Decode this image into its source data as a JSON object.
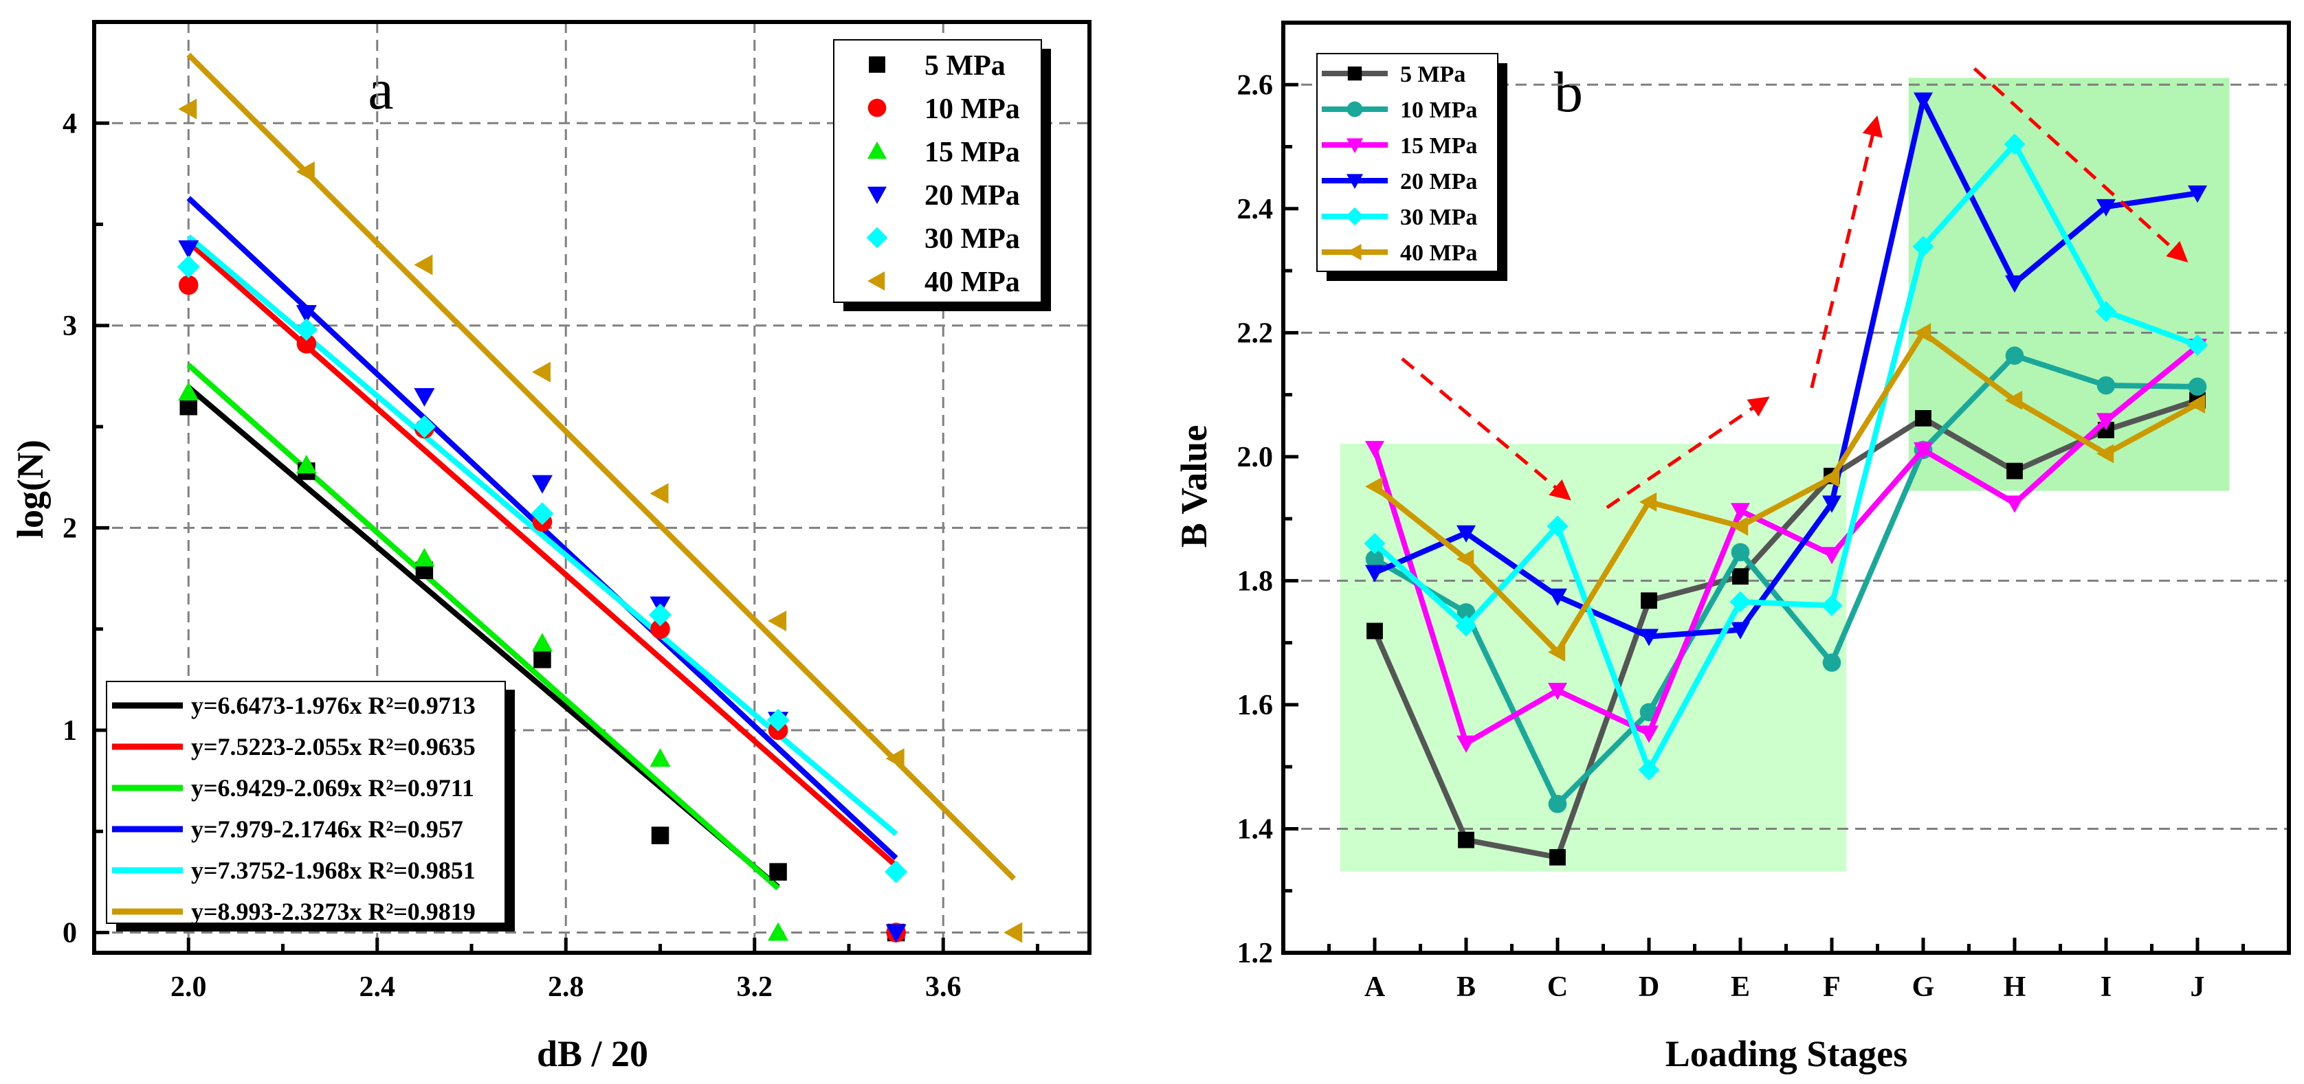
{
  "chart_data": [
    {
      "type": "scatter",
      "panel_label": "a",
      "xlabel": "dB / 20",
      "ylabel": "log(N)",
      "xlim": [
        1.8,
        3.91
      ],
      "ylim": [
        -0.1,
        4.5
      ],
      "xticks": [
        "2.0",
        "2.4",
        "2.8",
        "3.2",
        "3.6"
      ],
      "yticks": [
        "0",
        "1",
        "2",
        "3",
        "4"
      ],
      "grid": true,
      "legend_placement": "top-right",
      "fit_legend_placement": "bottom-left",
      "series": [
        {
          "name": "5 MPa",
          "color": "#000000",
          "marker": "square",
          "x": [
            2.0,
            2.25,
            2.5,
            2.75,
            3.0,
            3.25,
            3.5
          ],
          "y": [
            2.6,
            2.28,
            1.79,
            1.35,
            0.48,
            0.3,
            0.0
          ],
          "fit": {
            "label": "y=6.6473-1.976x R²=0.9713",
            "a": 6.6473,
            "b": 1.976,
            "x_range": [
              2.0,
              3.25
            ]
          }
        },
        {
          "name": "10 MPa",
          "color": "#ff0000",
          "marker": "circle",
          "x": [
            2.0,
            2.25,
            2.5,
            2.75,
            3.0,
            3.25,
            3.5
          ],
          "y": [
            3.2,
            2.91,
            2.49,
            2.03,
            1.5,
            1.0,
            0.0
          ],
          "fit": {
            "label": "y=7.5223-2.055x R²=0.9635",
            "a": 7.5223,
            "b": 2.055,
            "x_range": [
              2.0,
              3.5
            ]
          }
        },
        {
          "name": "15 MPa",
          "color": "#00ee00",
          "marker": "triangle-up",
          "x": [
            2.0,
            2.25,
            2.5,
            2.75,
            3.0,
            3.25
          ],
          "y": [
            2.67,
            2.31,
            1.85,
            1.43,
            0.86,
            0.0
          ],
          "fit": {
            "label": "y=6.9429-2.069x R²=0.9711",
            "a": 6.9429,
            "b": 2.069,
            "x_range": [
              2.0,
              3.25
            ]
          }
        },
        {
          "name": "20 MPa",
          "color": "#0000ff",
          "marker": "triangle-down",
          "x": [
            2.0,
            2.25,
            2.5,
            2.75,
            3.0,
            3.25,
            3.5
          ],
          "y": [
            3.38,
            3.06,
            2.65,
            2.22,
            1.62,
            1.05,
            0.0
          ],
          "fit": {
            "label": "y=7.979-2.1746x R²=0.957",
            "a": 7.979,
            "b": 2.1746,
            "x_range": [
              2.0,
              3.5
            ]
          }
        },
        {
          "name": "30 MPa",
          "color": "#00ffff",
          "marker": "diamond",
          "x": [
            2.0,
            2.25,
            2.5,
            2.75,
            3.0,
            3.25,
            3.5
          ],
          "y": [
            3.29,
            2.98,
            2.5,
            2.07,
            1.57,
            1.05,
            0.3
          ],
          "fit": {
            "label": "y=7.3752-1.968x R²=0.9851",
            "a": 7.3752,
            "b": 1.968,
            "x_range": [
              2.0,
              3.5
            ]
          }
        },
        {
          "name": "40 MPa",
          "color": "#cc9900",
          "marker": "triangle-left",
          "x": [
            2.0,
            2.25,
            2.5,
            2.75,
            3.0,
            3.25,
            3.5,
            3.75
          ],
          "y": [
            4.07,
            3.76,
            3.3,
            2.77,
            2.17,
            1.54,
            0.86,
            0.0
          ],
          "fit": {
            "label": "y=8.993-2.3273x R²=0.9819",
            "a": 8.993,
            "b": 2.3273,
            "x_range": [
              2.0,
              3.75
            ]
          }
        }
      ]
    },
    {
      "type": "line",
      "panel_label": "b",
      "xlabel": "Loading Stages",
      "ylabel": "B Value",
      "categories": [
        "A",
        "B",
        "C",
        "D",
        "E",
        "F",
        "G",
        "H",
        "I",
        "J"
      ],
      "ylim": [
        1.2,
        2.7
      ],
      "yticks": [
        "1.2",
        "1.4",
        "1.6",
        "1.8",
        "2.0",
        "2.2",
        "2.4",
        "2.6"
      ],
      "grid": "horizontal dashed at 1.4, 1.8, 2.2, 2.6",
      "legend_placement": "top-left",
      "shaded_regions": [
        {
          "x_index_range": [
            -0.38,
            5.16
          ],
          "y_range": [
            1.331,
            2.021
          ],
          "color": "#ccffcc"
        },
        {
          "x_index_range": [
            5.84,
            9.35
          ],
          "y_range": [
            1.945,
            2.611
          ],
          "color": "#b3f5b3"
        }
      ],
      "trend_arrows": [
        {
          "from": [
            0.3,
            2.158
          ],
          "to": [
            2.12,
            1.933
          ],
          "color": "#ff0000"
        },
        {
          "from": [
            2.54,
            1.918
          ],
          "to": [
            4.29,
            2.094
          ],
          "color": "#ff0000"
        },
        {
          "from": [
            4.78,
            2.111
          ],
          "to": [
            5.49,
            2.545
          ],
          "color": "#ff0000"
        },
        {
          "from": [
            6.56,
            2.626
          ],
          "to": [
            8.87,
            2.317
          ],
          "color": "#ff0000"
        }
      ],
      "series": [
        {
          "name": "5 MPa",
          "color": "#000000",
          "line_color": "#555555",
          "marker": "square",
          "values": [
            1.719,
            1.382,
            1.354,
            1.768,
            1.807,
            1.969,
            2.062,
            1.977,
            2.043,
            2.091
          ]
        },
        {
          "name": "10 MPa",
          "color": "#1aa89a",
          "line_color": "#1aa89a",
          "marker": "circle",
          "values": [
            1.835,
            1.749,
            1.44,
            1.588,
            1.846,
            1.668,
            2.011,
            2.163,
            2.115,
            2.113
          ]
        },
        {
          "name": "15 MPa",
          "color": "#ff00ff",
          "line_color": "#ff00ff",
          "marker": "triangle-down",
          "values": [
            2.013,
            1.538,
            1.623,
            1.554,
            1.913,
            1.842,
            2.011,
            1.925,
            2.058,
            2.178
          ]
        },
        {
          "name": "20 MPa",
          "color": "#0000ff",
          "line_color": "#0000ff",
          "marker": "triangle-down",
          "values": [
            1.813,
            1.877,
            1.775,
            1.71,
            1.721,
            1.925,
            2.575,
            2.28,
            2.403,
            2.425
          ]
        },
        {
          "name": "30 MPa",
          "color": "#00ffff",
          "line_color": "#00ffff",
          "marker": "diamond",
          "values": [
            1.86,
            1.727,
            1.888,
            1.495,
            1.766,
            1.76,
            2.339,
            2.504,
            2.234,
            2.18
          ]
        },
        {
          "name": "40 MPa",
          "color": "#cc9900",
          "line_color": "#cc9900",
          "marker": "triangle-left",
          "values": [
            1.952,
            1.835,
            1.685,
            1.927,
            1.888,
            1.966,
            2.2,
            2.091,
            2.005,
            2.085
          ]
        }
      ]
    }
  ]
}
